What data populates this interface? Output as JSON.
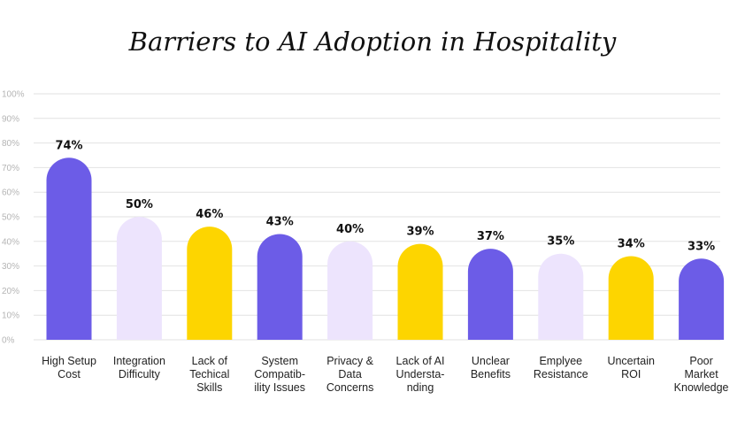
{
  "chart_data": {
    "type": "bar",
    "title": "Barriers to AI Adoption in Hospitality",
    "categories": [
      [
        "High Setup",
        "Cost"
      ],
      [
        "Integration",
        "Difficulty"
      ],
      [
        "Lack of",
        "Techical",
        "Skills"
      ],
      [
        "System",
        "Compatib-",
        "ility Issues"
      ],
      [
        "Privacy &",
        "Data",
        "Concerns"
      ],
      [
        "Lack of AI",
        "Understa-",
        "nding"
      ],
      [
        "Unclear",
        "Benefits"
      ],
      [
        "Emplyee",
        "Resistance"
      ],
      [
        "Uncertain",
        "ROI"
      ],
      [
        "Poor",
        "Market",
        "Knowledge"
      ]
    ],
    "values": [
      74,
      50,
      46,
      43,
      40,
      39,
      37,
      35,
      34,
      33
    ],
    "value_labels": [
      "74%",
      "50%",
      "46%",
      "43%",
      "40%",
      "39%",
      "37%",
      "35%",
      "34%",
      "33%"
    ],
    "bar_colors": [
      "#6c5ce7",
      "#ede4fd",
      "#fdd500",
      "#6c5ce7",
      "#ede4fd",
      "#fdd500",
      "#6c5ce7",
      "#ede4fd",
      "#fdd500",
      "#6c5ce7"
    ],
    "y_ticks": [
      "0%",
      "10%",
      "20%",
      "30%",
      "40%",
      "50%",
      "60%",
      "70%",
      "80%",
      "90%",
      "100%"
    ],
    "ylim": [
      0,
      100
    ],
    "grid": true,
    "xlabel": "",
    "ylabel": ""
  }
}
